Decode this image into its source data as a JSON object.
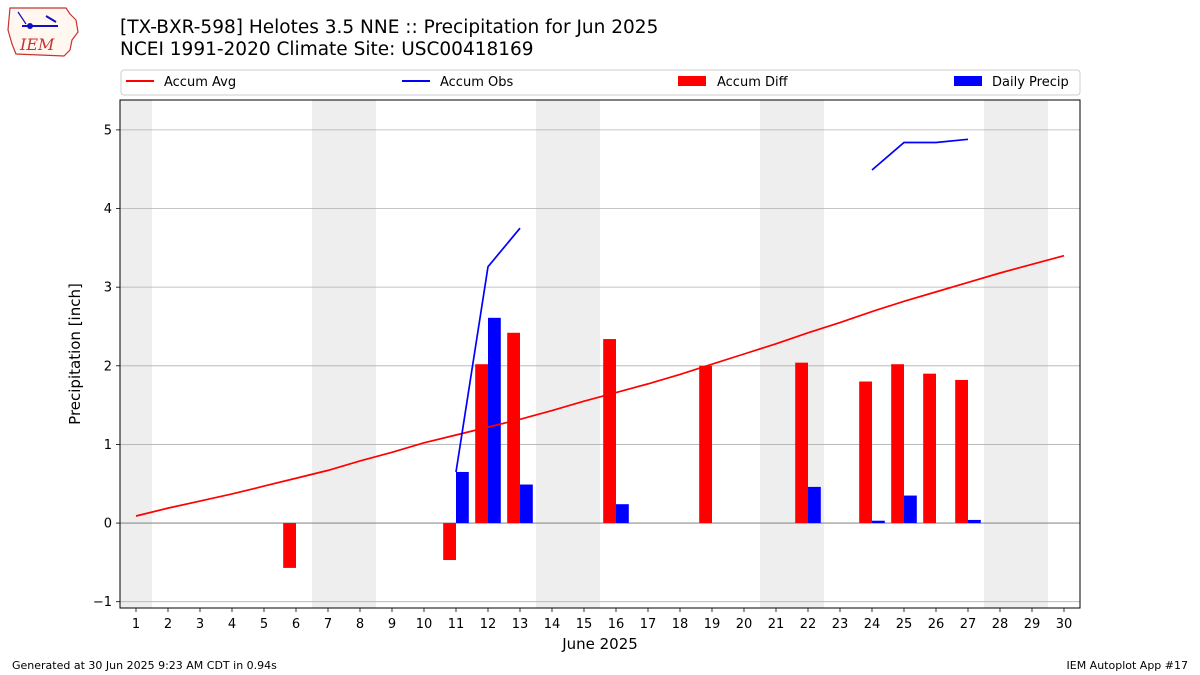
{
  "header": {
    "title_line1": "[TX-BXR-598] Helotes 3.5 NNE :: Precipitation for Jun 2025",
    "title_line2": "NCEI 1991-2020 Climate Site: USC00418169"
  },
  "logo": {
    "text": "IEM"
  },
  "footer": {
    "generated": "Generated at 30 Jun 2025 9:23 AM CDT in 0.94s",
    "app": "IEM Autoplot App #17"
  },
  "colors": {
    "avg": "#ff0000",
    "obs": "#0000ff",
    "diff": "#ff0000",
    "daily": "#0000ff",
    "weekend": "#eeeeee",
    "grid": "#b0b0b0"
  },
  "chart_data": {
    "type": "bar",
    "xlabel": "June 2025",
    "ylabel": "Precipitation [inch]",
    "xlim": [
      0.5,
      30.5
    ],
    "ylim": [
      -1.08,
      5.38
    ],
    "yticks": [
      -1,
      0,
      1,
      2,
      3,
      4,
      5
    ],
    "xticks": [
      1,
      2,
      3,
      4,
      5,
      6,
      7,
      8,
      9,
      10,
      11,
      12,
      13,
      14,
      15,
      16,
      17,
      18,
      19,
      20,
      21,
      22,
      23,
      24,
      25,
      26,
      27,
      28,
      29,
      30
    ],
    "grid": "horizontal",
    "legend_position": "top",
    "weekend_bands": [
      [
        1,
        1
      ],
      [
        7,
        8
      ],
      [
        14,
        15
      ],
      [
        21,
        22
      ],
      [
        28,
        29
      ]
    ],
    "legend": [
      "Accum Avg",
      "Accum Obs",
      "Accum Diff",
      "Daily Precip"
    ],
    "series": [
      {
        "name": "Accum Avg",
        "kind": "line",
        "x": [
          1,
          2,
          3,
          4,
          5,
          6,
          7,
          8,
          9,
          10,
          11,
          12,
          13,
          14,
          15,
          16,
          17,
          18,
          19,
          20,
          21,
          22,
          23,
          24,
          25,
          26,
          27,
          28,
          29,
          30
        ],
        "y": [
          0.09,
          0.19,
          0.28,
          0.37,
          0.47,
          0.57,
          0.67,
          0.79,
          0.9,
          1.02,
          1.12,
          1.22,
          1.32,
          1.43,
          1.55,
          1.66,
          1.77,
          1.89,
          2.02,
          2.15,
          2.28,
          2.42,
          2.55,
          2.69,
          2.82,
          2.94,
          3.06,
          3.18,
          3.29,
          3.4
        ]
      },
      {
        "name": "Accum Obs",
        "kind": "line",
        "segments": [
          {
            "x": [
              11,
              12,
              13
            ],
            "y": [
              0.65,
              3.26,
              3.75
            ]
          },
          {
            "x": [
              24,
              25,
              26,
              27
            ],
            "y": [
              4.49,
              4.84,
              4.84,
              4.88
            ]
          }
        ]
      },
      {
        "name": "Accum Diff",
        "kind": "bar",
        "x": [
          6,
          11,
          12,
          13,
          16,
          19,
          22,
          24,
          25,
          26,
          27
        ],
        "y": [
          -0.57,
          -0.47,
          2.02,
          2.42,
          2.34,
          2.0,
          2.04,
          1.8,
          2.02,
          1.9,
          1.82
        ]
      },
      {
        "name": "Daily Precip",
        "kind": "bar",
        "x": [
          11,
          12,
          13,
          16,
          22,
          24,
          25,
          27
        ],
        "y": [
          0.65,
          2.61,
          0.49,
          0.24,
          0.46,
          0.03,
          0.35,
          0.04
        ]
      }
    ]
  }
}
